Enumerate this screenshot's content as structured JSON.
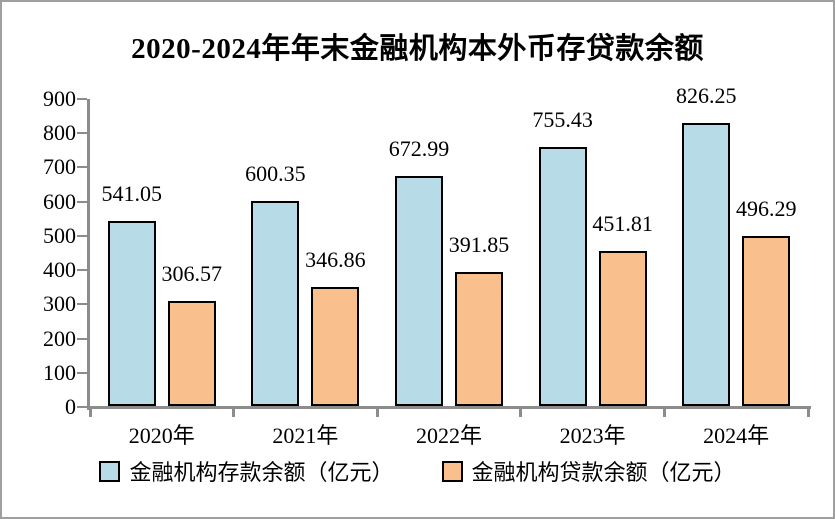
{
  "frame": {
    "border_color": "#9f9f9f",
    "background": "#ffffff"
  },
  "chart_data": {
    "type": "bar",
    "title": "2020-2024年年末金融机构本外币存贷款余额",
    "categories": [
      "2020年",
      "2021年",
      "2022年",
      "2023年",
      "2024年"
    ],
    "series": [
      {
        "key": "deposit",
        "name": "金融机构存款余额（亿元）",
        "color": "#b8dbe8",
        "values": [
          541.05,
          600.35,
          672.99,
          755.43,
          826.25
        ]
      },
      {
        "key": "loan",
        "name": "金融机构贷款余额（亿元）",
        "color": "#f9bf8d",
        "values": [
          306.57,
          346.86,
          391.85,
          451.81,
          496.29
        ]
      }
    ],
    "ylim": [
      0,
      900
    ],
    "ytick_step": 100,
    "ytick_labels": [
      "0",
      "100",
      "200",
      "300",
      "400",
      "500",
      "600",
      "700",
      "800",
      "900"
    ],
    "grid": false,
    "value_labels": true,
    "value_label_decimals": 2,
    "legend_position": "bottom",
    "axis_color": "#8c8c8c",
    "bar_border_color": "#000000",
    "text_color": "#000000"
  }
}
